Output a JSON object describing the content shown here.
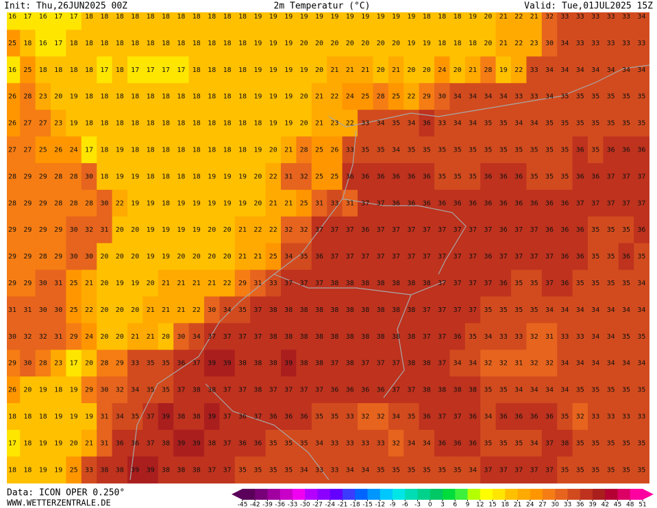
{
  "header": {
    "init": "Init: Thu,26JUN2025 00Z",
    "title": "2m Temperatur (°C)",
    "valid": "Valid: Tue,01JUL2025 15Z"
  },
  "footer": {
    "data": "Data: ICON OPER 0.250°",
    "site": "WWW.WETTERZENTRALE.DE"
  },
  "grid": {
    "values": [
      [
        16,
        17,
        16,
        17,
        17,
        18,
        18,
        18,
        18,
        18,
        18,
        18,
        18,
        18,
        18,
        18,
        19,
        19,
        19,
        19,
        19,
        19,
        19,
        19,
        19,
        19,
        19,
        18,
        18,
        18,
        19,
        20,
        21,
        22,
        21,
        32,
        33,
        33,
        33,
        33,
        33,
        34
      ],
      [
        25,
        18,
        16,
        17,
        18,
        18,
        18,
        18,
        18,
        18,
        18,
        18,
        18,
        18,
        18,
        18,
        19,
        19,
        19,
        20,
        20,
        20,
        20,
        20,
        20,
        20,
        19,
        19,
        18,
        18,
        18,
        20,
        21,
        22,
        23,
        30,
        34,
        33,
        33,
        33,
        33,
        33
      ],
      [
        16,
        25,
        18,
        18,
        18,
        18,
        17,
        18,
        17,
        17,
        17,
        17,
        18,
        18,
        18,
        18,
        19,
        19,
        19,
        19,
        20,
        21,
        21,
        21,
        20,
        21,
        20,
        20,
        24,
        20,
        21,
        28,
        19,
        22,
        33,
        34,
        34,
        34,
        34,
        34,
        34,
        34
      ],
      [
        26,
        28,
        23,
        20,
        19,
        18,
        18,
        18,
        18,
        18,
        18,
        18,
        18,
        18,
        18,
        18,
        19,
        19,
        19,
        20,
        21,
        22,
        24,
        25,
        28,
        25,
        22,
        29,
        30,
        34,
        34,
        34,
        34,
        33,
        33,
        34,
        35,
        35,
        35,
        35,
        35,
        35
      ],
      [
        26,
        27,
        27,
        23,
        19,
        18,
        18,
        18,
        18,
        18,
        18,
        18,
        18,
        18,
        18,
        18,
        18,
        19,
        19,
        20,
        21,
        23,
        22,
        33,
        34,
        35,
        34,
        36,
        33,
        34,
        34,
        35,
        35,
        34,
        34,
        35,
        35,
        35,
        35,
        35,
        35,
        35
      ],
      [
        27,
        27,
        25,
        26,
        24,
        17,
        18,
        19,
        18,
        18,
        18,
        18,
        18,
        18,
        18,
        18,
        19,
        20,
        21,
        28,
        25,
        26,
        33,
        35,
        35,
        34,
        35,
        35,
        35,
        35,
        35,
        35,
        35,
        35,
        35,
        35,
        35,
        36,
        35,
        36,
        36,
        36
      ],
      [
        28,
        29,
        29,
        28,
        28,
        30,
        18,
        19,
        19,
        18,
        18,
        18,
        18,
        19,
        19,
        19,
        20,
        22,
        31,
        32,
        25,
        25,
        36,
        36,
        36,
        36,
        36,
        36,
        35,
        35,
        35,
        36,
        36,
        36,
        35,
        35,
        35,
        36,
        36,
        37,
        37,
        37
      ],
      [
        28,
        29,
        29,
        28,
        28,
        28,
        30,
        22,
        19,
        19,
        18,
        19,
        19,
        19,
        19,
        19,
        20,
        21,
        21,
        25,
        31,
        33,
        31,
        37,
        37,
        36,
        36,
        36,
        36,
        36,
        36,
        36,
        36,
        36,
        36,
        36,
        36,
        37,
        37,
        37,
        37,
        37
      ],
      [
        29,
        29,
        29,
        29,
        30,
        32,
        31,
        20,
        20,
        19,
        19,
        19,
        19,
        20,
        20,
        21,
        22,
        22,
        32,
        32,
        37,
        37,
        37,
        36,
        37,
        37,
        37,
        37,
        37,
        37,
        37,
        37,
        36,
        37,
        37,
        36,
        36,
        36,
        35,
        35,
        35,
        36
      ],
      [
        29,
        29,
        28,
        29,
        30,
        30,
        20,
        20,
        20,
        19,
        19,
        20,
        20,
        20,
        20,
        21,
        21,
        25,
        34,
        35,
        36,
        37,
        37,
        37,
        37,
        37,
        37,
        37,
        37,
        37,
        37,
        36,
        37,
        37,
        37,
        37,
        36,
        36,
        35,
        35,
        36,
        35
      ],
      [
        29,
        29,
        30,
        31,
        25,
        21,
        20,
        19,
        19,
        20,
        21,
        21,
        21,
        21,
        22,
        29,
        31,
        33,
        37,
        37,
        37,
        38,
        38,
        38,
        38,
        38,
        38,
        38,
        37,
        37,
        37,
        37,
        36,
        35,
        35,
        37,
        36,
        35,
        35,
        35,
        35,
        34
      ],
      [
        31,
        31,
        30,
        30,
        25,
        22,
        20,
        20,
        20,
        21,
        21,
        21,
        22,
        30,
        34,
        35,
        37,
        38,
        38,
        38,
        38,
        38,
        38,
        38,
        38,
        38,
        38,
        37,
        37,
        37,
        37,
        35,
        35,
        35,
        35,
        34,
        34,
        34,
        34,
        34,
        34,
        34
      ],
      [
        30,
        32,
        32,
        31,
        29,
        24,
        20,
        20,
        21,
        21,
        20,
        30,
        34,
        37,
        37,
        37,
        37,
        38,
        38,
        38,
        38,
        38,
        38,
        38,
        38,
        38,
        38,
        37,
        37,
        36,
        35,
        34,
        33,
        33,
        32,
        31,
        33,
        33,
        34,
        34,
        35,
        35
      ],
      [
        29,
        30,
        28,
        23,
        17,
        20,
        28,
        29,
        33,
        35,
        35,
        36,
        37,
        39,
        39,
        38,
        38,
        38,
        39,
        38,
        38,
        37,
        38,
        37,
        37,
        37,
        38,
        38,
        37,
        34,
        34,
        32,
        32,
        31,
        32,
        32,
        34,
        34,
        34,
        34,
        34,
        34
      ],
      [
        26,
        20,
        19,
        18,
        19,
        29,
        30,
        32,
        34,
        35,
        35,
        37,
        38,
        38,
        37,
        37,
        38,
        37,
        37,
        37,
        37,
        36,
        36,
        36,
        36,
        37,
        37,
        38,
        38,
        38,
        38,
        35,
        35,
        34,
        34,
        34,
        34,
        35,
        35,
        35,
        35,
        35
      ],
      [
        18,
        18,
        18,
        19,
        19,
        19,
        31,
        34,
        35,
        37,
        39,
        38,
        38,
        39,
        37,
        36,
        37,
        36,
        36,
        36,
        35,
        35,
        33,
        32,
        32,
        34,
        35,
        36,
        37,
        37,
        36,
        34,
        36,
        36,
        36,
        36,
        35,
        32,
        33,
        33,
        33,
        33
      ],
      [
        17,
        18,
        19,
        19,
        20,
        21,
        31,
        36,
        36,
        37,
        38,
        39,
        39,
        38,
        37,
        36,
        36,
        35,
        35,
        35,
        34,
        33,
        33,
        33,
        33,
        32,
        34,
        34,
        36,
        36,
        36,
        35,
        35,
        35,
        34,
        37,
        38,
        35,
        35,
        35,
        35,
        35
      ],
      [
        18,
        18,
        19,
        19,
        25,
        33,
        38,
        38,
        39,
        39,
        38,
        38,
        38,
        37,
        37,
        35,
        35,
        35,
        35,
        34,
        33,
        33,
        34,
        34,
        35,
        35,
        35,
        35,
        35,
        35,
        34,
        37,
        37,
        37,
        37,
        37,
        35,
        35,
        35,
        35,
        35,
        35
      ]
    ]
  },
  "colorbar": {
    "labels": [
      -45,
      -42,
      -39,
      -36,
      -33,
      -30,
      -27,
      -24,
      -21,
      -18,
      -15,
      -12,
      -9,
      -6,
      -3,
      0,
      3,
      6,
      9,
      12,
      15,
      18,
      21,
      24,
      27,
      30,
      33,
      36,
      39,
      42,
      45,
      48,
      51
    ],
    "colors": [
      "#5a005a",
      "#780078",
      "#a000a0",
      "#c800c8",
      "#f000f0",
      "#b400ff",
      "#8c00ff",
      "#6400ff",
      "#3c3cff",
      "#0064ff",
      "#0096ff",
      "#00c8ff",
      "#00e6e6",
      "#00dcb4",
      "#00d28c",
      "#00c864",
      "#00dc3c",
      "#3cf03c",
      "#b4ff00",
      "#ffff00",
      "#ffe600",
      "#ffc000",
      "#ffaa00",
      "#ff9600",
      "#f57d14",
      "#e6641e",
      "#d24b1e",
      "#be321e",
      "#aa1e1e",
      "#b40032",
      "#dc0064",
      "#ff00a0"
    ]
  }
}
